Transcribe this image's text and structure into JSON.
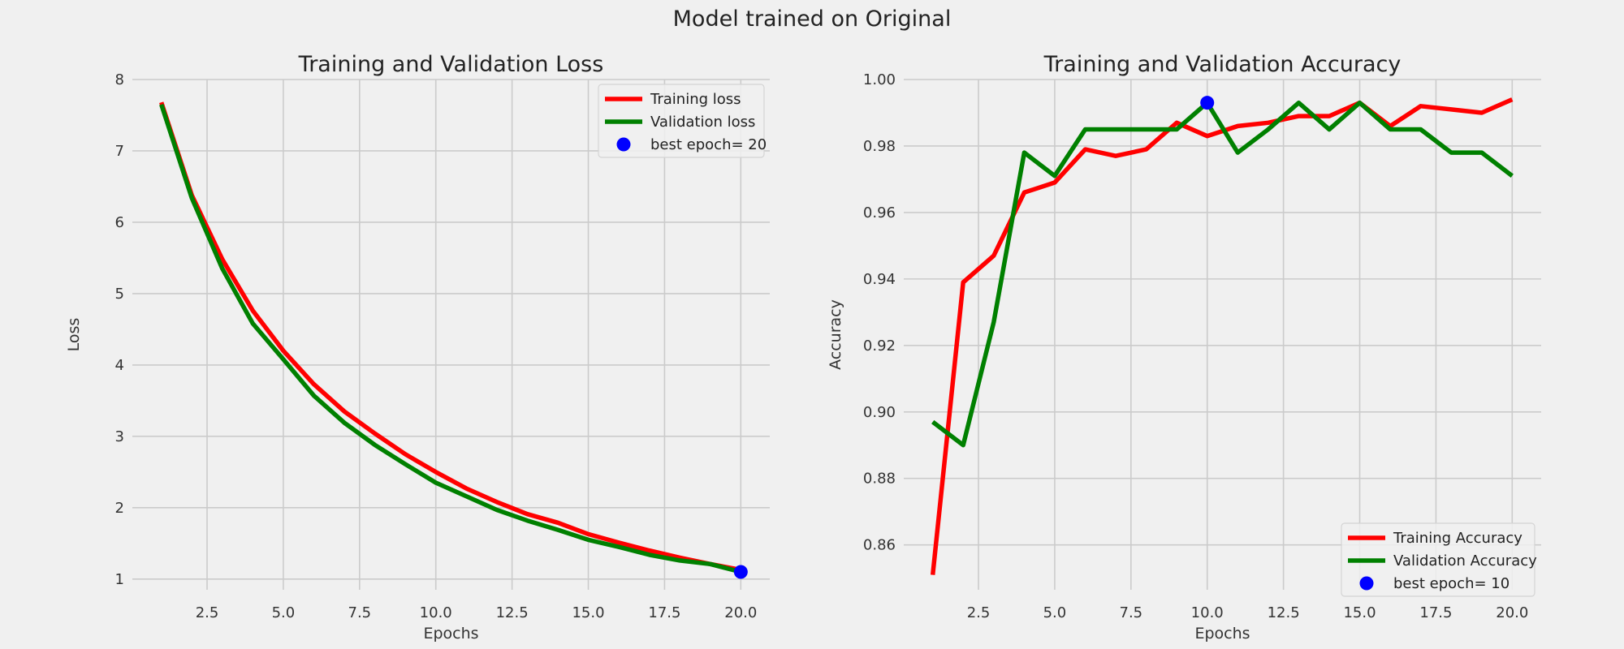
{
  "figure": {
    "title": "Model trained on Original"
  },
  "chart_data": [
    {
      "type": "line",
      "title": "Training and Validation Loss",
      "xlabel": "Epochs",
      "ylabel": "Loss",
      "xlim": [
        0.05,
        20.95
      ],
      "ylim": [
        0.85,
        8.0
      ],
      "xticks": [
        2.5,
        5.0,
        7.5,
        10.0,
        12.5,
        15.0,
        17.5,
        20.0
      ],
      "xtick_labels": [
        "2.5",
        "5.0",
        "7.5",
        "10.0",
        "12.5",
        "15.0",
        "17.5",
        "20.0"
      ],
      "yticks": [
        1,
        2,
        3,
        4,
        5,
        6,
        7,
        8
      ],
      "ytick_labels": [
        "1",
        "2",
        "3",
        "4",
        "5",
        "6",
        "7",
        "8"
      ],
      "grid": true,
      "legend_position": "top-right",
      "x": [
        1,
        2,
        3,
        4,
        5,
        6,
        7,
        8,
        9,
        10,
        11,
        12,
        13,
        14,
        15,
        16,
        17,
        18,
        19,
        20
      ],
      "series": [
        {
          "name": "Training loss",
          "color": "#ff0000",
          "values": [
            7.68,
            6.38,
            5.48,
            4.76,
            4.2,
            3.73,
            3.35,
            3.04,
            2.75,
            2.5,
            2.27,
            2.08,
            1.91,
            1.79,
            1.63,
            1.51,
            1.4,
            1.3,
            1.21,
            1.13
          ]
        },
        {
          "name": "Validation loss",
          "color": "#008000",
          "values": [
            7.65,
            6.34,
            5.35,
            4.58,
            4.08,
            3.57,
            3.19,
            2.88,
            2.61,
            2.35,
            2.16,
            1.97,
            1.82,
            1.69,
            1.55,
            1.45,
            1.34,
            1.26,
            1.21,
            1.1
          ]
        }
      ],
      "marker": {
        "label": "best epoch= 20",
        "x": 20,
        "y": 1.1,
        "color": "#0000ff"
      }
    },
    {
      "type": "line",
      "title": "Training and Validation Accuracy",
      "xlabel": "Epochs",
      "ylabel": "Accuracy",
      "xlim": [
        0.05,
        20.95
      ],
      "ylim": [
        0.8465,
        1.0
      ],
      "xticks": [
        2.5,
        5.0,
        7.5,
        10.0,
        12.5,
        15.0,
        17.5,
        20.0
      ],
      "xtick_labels": [
        "2.5",
        "5.0",
        "7.5",
        "10.0",
        "12.5",
        "15.0",
        "17.5",
        "20.0"
      ],
      "yticks": [
        0.86,
        0.88,
        0.9,
        0.92,
        0.94,
        0.96,
        0.98,
        1.0
      ],
      "ytick_labels": [
        "0.86",
        "0.88",
        "0.90",
        "0.92",
        "0.94",
        "0.96",
        "0.98",
        "1.00"
      ],
      "grid": true,
      "legend_position": "bottom-right",
      "x": [
        1,
        2,
        3,
        4,
        5,
        6,
        7,
        8,
        9,
        10,
        11,
        12,
        13,
        14,
        15,
        16,
        17,
        18,
        19,
        20
      ],
      "series": [
        {
          "name": "Training Accuracy",
          "color": "#ff0000",
          "values": [
            0.851,
            0.939,
            0.947,
            0.966,
            0.969,
            0.979,
            0.977,
            0.979,
            0.987,
            0.983,
            0.986,
            0.987,
            0.989,
            0.989,
            0.993,
            0.986,
            0.992,
            0.991,
            0.99,
            0.994
          ]
        },
        {
          "name": "Validation Accuracy",
          "color": "#008000",
          "values": [
            0.897,
            0.89,
            0.927,
            0.978,
            0.971,
            0.985,
            0.985,
            0.985,
            0.985,
            0.993,
            0.978,
            0.985,
            0.993,
            0.985,
            0.993,
            0.985,
            0.985,
            0.978,
            0.978,
            0.971
          ]
        }
      ],
      "marker": {
        "label": "best epoch= 10",
        "x": 10,
        "y": 0.993,
        "color": "#0000ff"
      }
    }
  ]
}
